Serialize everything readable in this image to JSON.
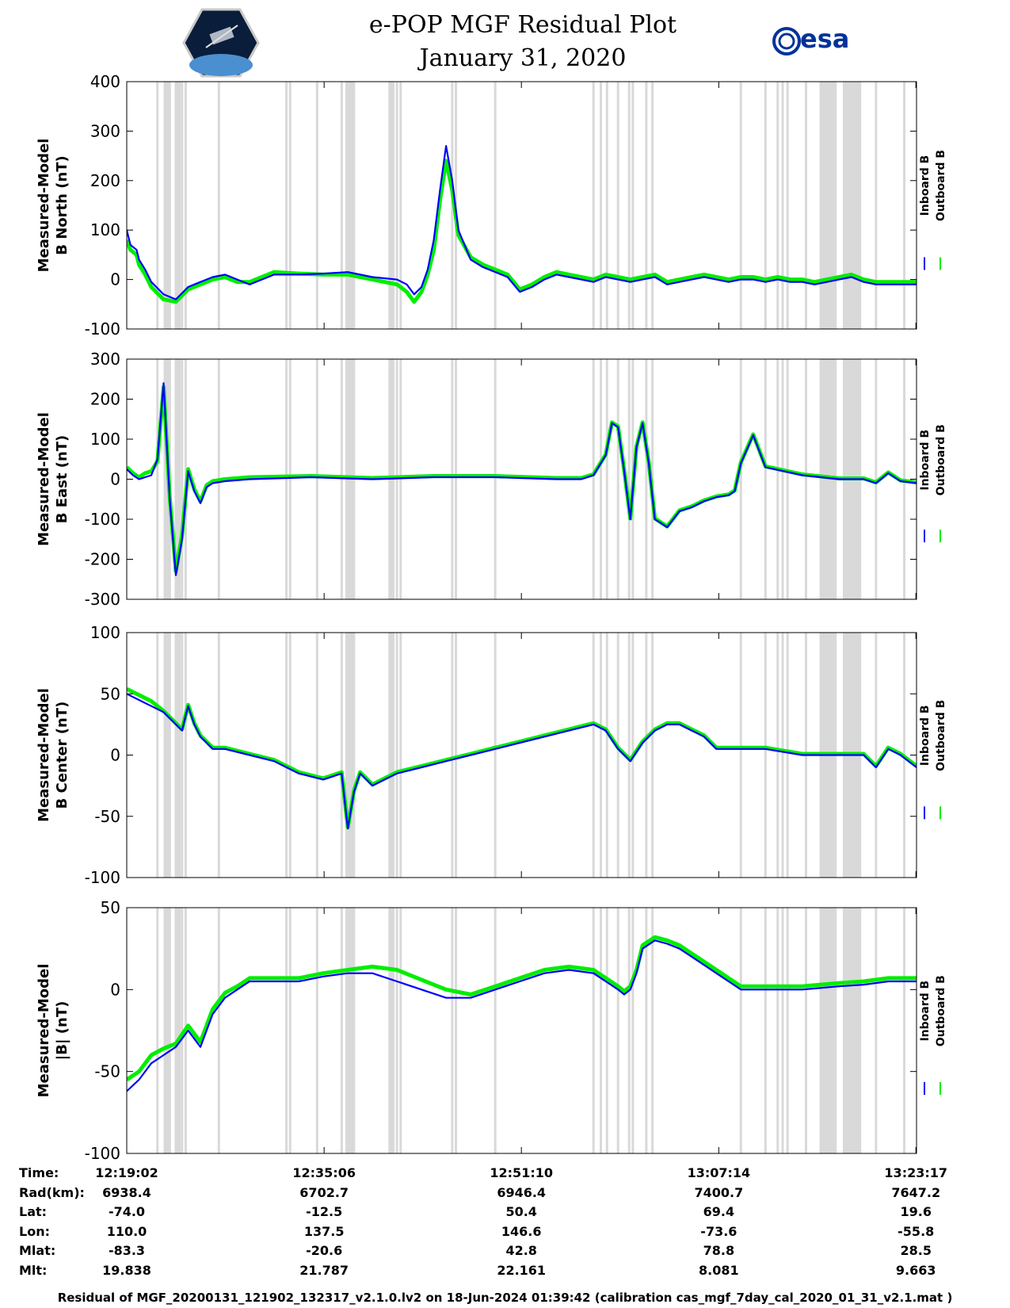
{
  "title_line1": "e-POP MGF Residual Plot",
  "title_line2": "January 31, 2020",
  "logo_text": "esa",
  "colors": {
    "inboard": "#0000ff",
    "outboard": "#00ee00",
    "gap": "#d9d9d9"
  },
  "chart_data": [
    {
      "type": "line",
      "ylabel_line1": "Measured-Model",
      "ylabel_line2": "B North (nT)",
      "ylim": [
        -100,
        400
      ],
      "yticks": [
        "-100",
        "0",
        "100",
        "200",
        "300",
        "400"
      ],
      "legend": [
        "Inboard B",
        "Outboard B"
      ],
      "x": [
        0,
        0.3,
        0.8,
        1.0,
        1.5,
        2.0,
        3.0,
        4.0,
        5.0,
        6.0,
        7.0,
        8.0,
        9.0,
        10.0,
        11.0,
        12.0,
        14.0,
        16.0,
        18.0,
        20.0,
        22.0,
        22.8,
        23.4,
        24.0,
        24.5,
        25.0,
        25.5,
        26.0,
        26.5,
        27.0,
        28.0,
        29.0,
        30.0,
        31.0,
        32.0,
        33.0,
        34.0,
        35.0,
        36.0,
        37.0,
        38.0,
        39.0,
        40.0,
        41.0,
        42.0,
        43.0,
        44.0,
        45.0,
        46.0,
        47.0,
        48.0,
        49.0,
        50.0,
        51.0,
        52.0,
        53.0,
        54.0,
        55.0,
        56.0,
        57.0,
        58.0,
        59.0,
        60.0,
        61.0,
        62.0,
        63.0,
        64.0,
        64.3
      ],
      "series": [
        {
          "name": "Inboard B",
          "values": [
            100,
            70,
            60,
            40,
            20,
            -5,
            -30,
            -40,
            -15,
            -5,
            5,
            10,
            0,
            -10,
            0,
            10,
            10,
            12,
            15,
            5,
            0,
            -10,
            -30,
            -15,
            20,
            80,
            180,
            270,
            200,
            100,
            40,
            25,
            15,
            5,
            -25,
            -15,
            0,
            10,
            5,
            0,
            -5,
            5,
            0,
            -5,
            0,
            5,
            -10,
            -5,
            0,
            5,
            0,
            -5,
            0,
            0,
            -5,
            0,
            -5,
            -5,
            -10,
            -5,
            0,
            5,
            -5,
            -10,
            -10,
            -10,
            -10,
            -10
          ]
        },
        {
          "name": "Outboard B",
          "values": [
            80,
            60,
            50,
            30,
            10,
            -15,
            -40,
            -45,
            -20,
            -10,
            0,
            5,
            -5,
            -5,
            5,
            15,
            12,
            10,
            10,
            0,
            -10,
            -25,
            -45,
            -25,
            10,
            60,
            160,
            240,
            180,
            90,
            45,
            30,
            20,
            10,
            -20,
            -10,
            5,
            15,
            10,
            5,
            0,
            10,
            5,
            0,
            5,
            10,
            -5,
            0,
            5,
            10,
            5,
            0,
            5,
            5,
            0,
            5,
            0,
            0,
            -5,
            0,
            5,
            10,
            0,
            -5,
            -5,
            -5,
            -5,
            -5
          ]
        }
      ]
    },
    {
      "type": "line",
      "ylabel_line1": "Measured-Model",
      "ylabel_line2": "B East (nT)",
      "ylim": [
        -300,
        300
      ],
      "yticks": [
        "-300",
        "-200",
        "-100",
        "0",
        "100",
        "200",
        "300"
      ],
      "legend": [
        "Inboard B",
        "Outboard B"
      ],
      "x": [
        0,
        0.5,
        1.0,
        1.5,
        2.0,
        2.5,
        3.0,
        3.5,
        4.0,
        4.5,
        5.0,
        5.5,
        6.0,
        6.5,
        7.0,
        8.0,
        10.0,
        15.0,
        20.0,
        25.0,
        30.0,
        35.0,
        37.0,
        38.0,
        39.0,
        39.5,
        40.0,
        40.5,
        41.0,
        41.5,
        42.0,
        42.5,
        43.0,
        44.0,
        45.0,
        46.0,
        47.0,
        48.0,
        49.0,
        49.5,
        50.0,
        51.0,
        52.0,
        55.0,
        58.0,
        60.0,
        61.0,
        62.0,
        63.0,
        64.3
      ],
      "series": [
        {
          "name": "Inboard B",
          "values": [
            25,
            10,
            0,
            5,
            10,
            50,
            240,
            -50,
            -240,
            -150,
            20,
            -30,
            -60,
            -20,
            -10,
            -5,
            0,
            5,
            0,
            5,
            5,
            0,
            0,
            10,
            60,
            140,
            130,
            20,
            -100,
            80,
            140,
            40,
            -100,
            -120,
            -80,
            -70,
            -55,
            -45,
            -40,
            -30,
            40,
            110,
            30,
            10,
            0,
            0,
            -10,
            15,
            -5,
            -10
          ]
        },
        {
          "name": "Outboard B",
          "values": [
            30,
            15,
            5,
            15,
            20,
            45,
            230,
            -45,
            -230,
            -140,
            25,
            -25,
            -55,
            -15,
            -5,
            0,
            5,
            8,
            3,
            8,
            8,
            3,
            3,
            12,
            62,
            142,
            132,
            22,
            -98,
            82,
            142,
            42,
            -98,
            -118,
            -78,
            -68,
            -53,
            -43,
            -38,
            -28,
            42,
            112,
            32,
            12,
            2,
            2,
            -8,
            17,
            -3,
            -8
          ]
        }
      ]
    },
    {
      "type": "line",
      "ylabel_line1": "Measured-Model",
      "ylabel_line2": "B Center (nT)",
      "ylim": [
        -100,
        100
      ],
      "yticks": [
        "-100",
        "-50",
        "0",
        "50",
        "100"
      ],
      "legend": [
        "Inboard B",
        "Outboard B"
      ],
      "x": [
        0,
        1.0,
        2.0,
        3.0,
        4.0,
        4.5,
        5.0,
        5.5,
        6.0,
        6.5,
        7.0,
        8.0,
        10.0,
        12.0,
        13.0,
        14.0,
        16.0,
        17.5,
        18.0,
        18.5,
        19.0,
        19.5,
        20.0,
        21.0,
        22.0,
        24.0,
        26.0,
        28.0,
        30.0,
        32.0,
        34.0,
        36.0,
        38.0,
        39.0,
        40.0,
        41.0,
        42.0,
        43.0,
        44.0,
        45.0,
        46.0,
        47.0,
        48.0,
        50.0,
        52.0,
        55.0,
        58.0,
        60.0,
        61.0,
        62.0,
        63.0,
        64.3
      ],
      "series": [
        {
          "name": "Inboard B",
          "values": [
            50,
            45,
            40,
            35,
            25,
            20,
            40,
            25,
            15,
            10,
            5,
            5,
            0,
            -5,
            -10,
            -15,
            -20,
            -15,
            -60,
            -30,
            -15,
            -20,
            -25,
            -20,
            -15,
            -10,
            -5,
            0,
            5,
            10,
            15,
            20,
            25,
            20,
            5,
            -5,
            10,
            20,
            25,
            25,
            20,
            15,
            5,
            5,
            5,
            0,
            0,
            0,
            -10,
            5,
            0,
            -10
          ]
        },
        {
          "name": "Outboard B",
          "values": [
            54,
            49,
            44,
            36,
            26,
            21,
            41,
            26,
            16,
            11,
            6,
            6,
            1,
            -4,
            -9,
            -14,
            -19,
            -14,
            -59,
            -29,
            -14,
            -19,
            -24,
            -19,
            -14,
            -9,
            -4,
            1,
            6,
            11,
            16,
            21,
            26,
            21,
            6,
            -4,
            11,
            21,
            26,
            26,
            21,
            16,
            6,
            6,
            6,
            1,
            1,
            1,
            -9,
            6,
            1,
            -9
          ]
        }
      ]
    },
    {
      "type": "line",
      "ylabel_line1": "Measured-Model",
      "ylabel_line2": "|B| (nT)",
      "ylim": [
        -100,
        50
      ],
      "yticks": [
        "-100",
        "-50",
        "0",
        "50"
      ],
      "legend": [
        "Inboard B",
        "Outboard B"
      ],
      "x": [
        0,
        1.0,
        2.0,
        3.0,
        4.0,
        5.0,
        6.0,
        7.0,
        8.0,
        9.0,
        10.0,
        12.0,
        14.0,
        16.0,
        18.0,
        20.0,
        22.0,
        24.0,
        26.0,
        28.0,
        30.0,
        32.0,
        34.0,
        36.0,
        38.0,
        40.0,
        40.5,
        41.0,
        41.5,
        42.0,
        43.0,
        44.0,
        45.0,
        46.0,
        47.0,
        48.0,
        49.0,
        50.0,
        51.0,
        52.0,
        55.0,
        58.0,
        60.0,
        62.0,
        64.3
      ],
      "series": [
        {
          "name": "Inboard B",
          "values": [
            -62,
            -55,
            -45,
            -40,
            -35,
            -25,
            -35,
            -15,
            -5,
            0,
            5,
            5,
            5,
            8,
            10,
            10,
            5,
            0,
            -5,
            -5,
            0,
            5,
            10,
            12,
            10,
            0,
            -3,
            0,
            10,
            25,
            30,
            28,
            25,
            20,
            15,
            10,
            5,
            0,
            0,
            0,
            0,
            2,
            3,
            5,
            5
          ]
        },
        {
          "name": "Outboard B",
          "values": [
            -55,
            -50,
            -40,
            -36,
            -33,
            -22,
            -32,
            -12,
            -2,
            2,
            7,
            7,
            7,
            10,
            12,
            14,
            12,
            6,
            0,
            -3,
            2,
            7,
            12,
            14,
            12,
            2,
            -1,
            2,
            12,
            27,
            32,
            30,
            27,
            22,
            17,
            12,
            7,
            2,
            2,
            2,
            2,
            4,
            5,
            7,
            7
          ]
        }
      ]
    }
  ],
  "gap_x": [
    2.5,
    3.3,
    4.0,
    4.5,
    4.8,
    7.5,
    13.0,
    13.3,
    15.5,
    17.5,
    22.0,
    22.3,
    26.5,
    26.8,
    30.0,
    38.0,
    38.6,
    39.1,
    40.0,
    40.9,
    41.2,
    42.3,
    42.8,
    50.0,
    52.0,
    53.0,
    53.4,
    53.8,
    55.3,
    61.0,
    63.3
  ],
  "gap_bands": [
    [
      3.0,
      3.6
    ],
    [
      3.9,
      4.4
    ],
    [
      17.8,
      18.6
    ],
    [
      21.3,
      21.8
    ],
    [
      56.4,
      57.8
    ],
    [
      58.3,
      59.8
    ]
  ],
  "x_tick_positions": [
    0,
    16.07,
    32.13,
    48.2,
    64.25
  ],
  "info_rows": [
    {
      "label": "Time:",
      "values": [
        "12:19:02",
        "12:35:06",
        "12:51:10",
        "13:07:14",
        "13:23:17"
      ]
    },
    {
      "label": "Rad(km):",
      "values": [
        "6938.4",
        "6702.7",
        "6946.4",
        "7400.7",
        "7647.2"
      ]
    },
    {
      "label": "Lat:",
      "values": [
        "-74.0",
        "-12.5",
        "50.4",
        "69.4",
        "19.6"
      ]
    },
    {
      "label": "Lon:",
      "values": [
        "110.0",
        "137.5",
        "146.6",
        "-73.6",
        "-55.8"
      ]
    },
    {
      "label": "Mlat:",
      "values": [
        "-83.3",
        "-20.6",
        "42.8",
        "78.8",
        "28.5"
      ]
    },
    {
      "label": "Mlt:",
      "values": [
        "19.838",
        "21.787",
        "22.161",
        "8.081",
        "9.663"
      ]
    }
  ],
  "footer": "Residual of MGF_20200131_121902_132317_v2.1.0.lv2 on 18-Jun-2024 01:39:42 (calibration cas_mgf_7day_cal_2020_01_31_v2.1.mat )"
}
